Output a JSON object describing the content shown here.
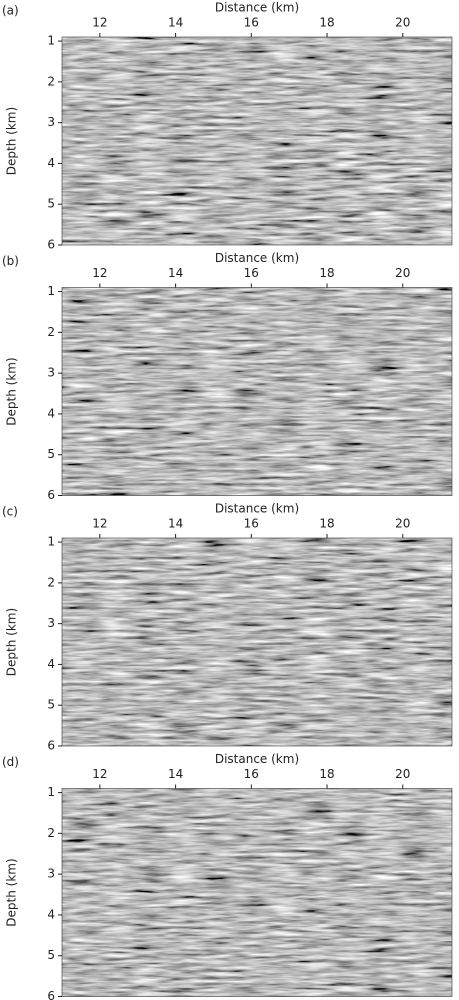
{
  "chart_data": [
    {
      "type": "image",
      "panel_label": "(a)",
      "xlabel": "Distance (km)",
      "ylabel": "Depth (km)",
      "xlim": [
        11,
        21.3
      ],
      "ylim": [
        6,
        0.9
      ],
      "xticks": [
        12,
        14,
        16,
        18,
        20
      ],
      "yticks": [
        1,
        2,
        3,
        4,
        5,
        6
      ]
    },
    {
      "type": "image",
      "panel_label": "(b)",
      "xlabel": "Distance (km)",
      "ylabel": "Depth (km)",
      "xlim": [
        11,
        21.3
      ],
      "ylim": [
        6,
        0.9
      ],
      "xticks": [
        12,
        14,
        16,
        18,
        20
      ],
      "yticks": [
        1,
        2,
        3,
        4,
        5,
        6
      ]
    },
    {
      "type": "image",
      "panel_label": "(c)",
      "xlabel": "Distance (km)",
      "ylabel": "Depth (km)",
      "xlim": [
        11,
        21.3
      ],
      "ylim": [
        6,
        0.9
      ],
      "xticks": [
        12,
        14,
        16,
        18,
        20
      ],
      "yticks": [
        1,
        2,
        3,
        4,
        5,
        6
      ]
    },
    {
      "type": "image",
      "panel_label": "(d)",
      "xlabel": "Distance (km)",
      "ylabel": "Depth (km)",
      "xlim": [
        11,
        21.3
      ],
      "ylim": [
        6,
        0.9
      ],
      "xticks": [
        12,
        14,
        16,
        18,
        20
      ],
      "yticks": [
        1,
        2,
        3,
        4,
        5,
        6
      ]
    }
  ]
}
